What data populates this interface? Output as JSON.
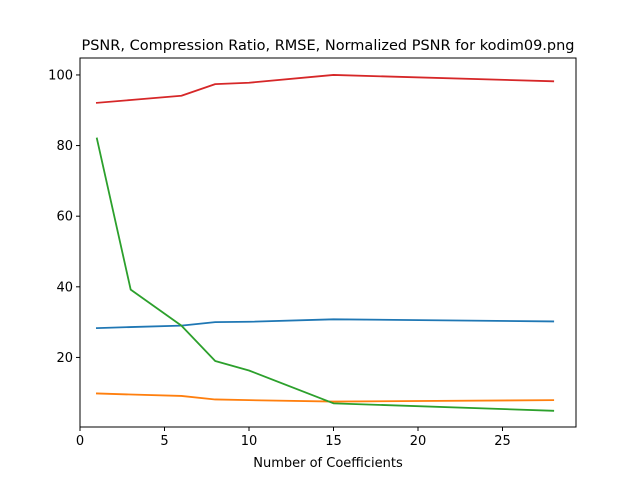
{
  "chart_data": {
    "type": "line",
    "title": "PSNR, Compression Ratio, RMSE, Normalized PSNR for kodim09.png",
    "xlabel": "Number of Coefficients",
    "ylabel": "",
    "xlim": [
      0,
      29.35
    ],
    "ylim": [
      0.3,
      104.8
    ],
    "x_ticks": [
      0,
      5,
      10,
      15,
      20,
      25
    ],
    "y_ticks": [
      20,
      40,
      60,
      80,
      100
    ],
    "grid": false,
    "legend": "none",
    "series": [
      {
        "color": "#1f77b4",
        "x": [
          1,
          3,
          6,
          8,
          10,
          15,
          28
        ],
        "y": [
          28.3,
          28.6,
          29.0,
          30.0,
          30.1,
          30.8,
          30.2
        ]
      },
      {
        "color": "#ff7f0e",
        "x": [
          1,
          3,
          6,
          8,
          10,
          15,
          28
        ],
        "y": [
          9.8,
          9.5,
          9.1,
          8.1,
          7.9,
          7.5,
          7.9
        ]
      },
      {
        "color": "#2ca02c",
        "x": [
          1,
          3,
          6,
          8,
          10,
          15,
          28
        ],
        "y": [
          82.0,
          39.2,
          29.0,
          19.0,
          16.3,
          7.0,
          4.9
        ]
      },
      {
        "color": "#d62728",
        "x": [
          1,
          3,
          6,
          8,
          10,
          15,
          28
        ],
        "y": [
          92.1,
          92.9,
          94.1,
          97.4,
          97.8,
          100.0,
          98.2
        ]
      }
    ]
  }
}
